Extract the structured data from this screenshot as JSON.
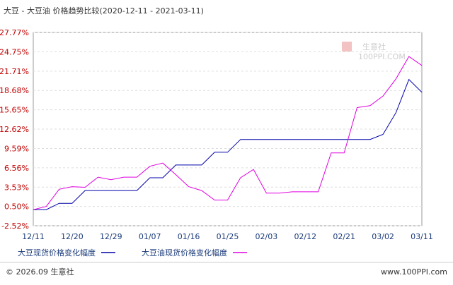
{
  "chart_data": {
    "type": "line",
    "title": "大豆 - 大豆油 价格趋势比较(2020-12-11 - 2021-03-11)",
    "categories": [
      "12/11",
      null,
      null,
      "12/20",
      null,
      null,
      "12/29",
      null,
      null,
      "01/07",
      null,
      null,
      "01/16",
      null,
      null,
      "01/25",
      null,
      null,
      "02/03",
      null,
      null,
      "02/12",
      null,
      null,
      "02/21",
      null,
      null,
      "03/02",
      null,
      null,
      "03/11"
    ],
    "series": [
      {
        "name": "大豆现货价格变化幅度",
        "color": "#0000aa",
        "values": [
          0,
          0,
          1,
          1,
          3,
          3,
          3,
          3,
          3,
          5,
          5,
          7,
          7,
          7,
          9,
          9,
          11,
          11,
          11,
          11,
          11,
          11,
          11,
          11,
          11,
          11,
          11,
          11.8,
          15.2,
          20.4,
          18.4
        ]
      },
      {
        "name": "大豆油现货价格变化幅度",
        "color": "#e000e0",
        "values": [
          0,
          0.5,
          3.2,
          3.6,
          3.5,
          5.1,
          4.7,
          5.1,
          5.1,
          6.8,
          7.3,
          5.5,
          3.6,
          3.0,
          1.5,
          1.5,
          5.0,
          6.3,
          2.6,
          2.6,
          2.8,
          2.8,
          2.8,
          8.9,
          8.9,
          16.0,
          16.3,
          17.8,
          20.5,
          24.0,
          22.6
        ]
      }
    ],
    "ylim": [
      -2.52,
      27.77
    ],
    "yticks": [
      {
        "value": -2.52,
        "label": "-2.52%"
      },
      {
        "value": 0.5,
        "label": "0.50%"
      },
      {
        "value": 3.53,
        "label": "3.53%"
      },
      {
        "value": 6.56,
        "label": "6.56%"
      },
      {
        "value": 9.59,
        "label": "9.59%"
      },
      {
        "value": 12.62,
        "label": "12.62%"
      },
      {
        "value": 15.65,
        "label": "15.65%"
      },
      {
        "value": 18.68,
        "label": "18.68%"
      },
      {
        "value": 21.71,
        "label": "21.71%"
      },
      {
        "value": 24.75,
        "label": "24.75%"
      },
      {
        "value": 27.77,
        "label": "27.77%"
      }
    ],
    "grid": true,
    "watermark": {
      "name": "生意社",
      "site": "100PPI.COM"
    },
    "footer": {
      "left": "© 2026.09 生意社",
      "right": "www.100PPI.com"
    }
  }
}
